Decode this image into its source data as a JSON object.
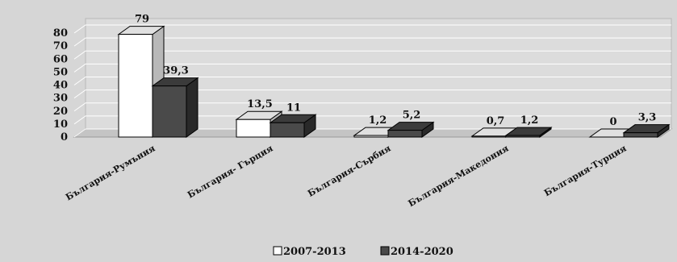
{
  "chart_data": {
    "type": "bar",
    "style": "3d-clustered-column",
    "categories": [
      "България-Румъния",
      "България- Гърция",
      "България-Сърбия",
      "България-Македония",
      "България-Турция"
    ],
    "series": [
      {
        "name": "2007-2013",
        "values": [
          79,
          13.5,
          1.2,
          0.7,
          0
        ],
        "labels": [
          "79",
          "13,5",
          "1,2",
          "0,7",
          "0"
        ],
        "color": "#ffffff"
      },
      {
        "name": "2014-2020",
        "values": [
          39.3,
          11,
          5.2,
          1.2,
          3.3
        ],
        "labels": [
          "39,3",
          "11",
          "5,2",
          "1,2",
          "3,3"
        ],
        "color": "#4a4a4a"
      }
    ],
    "yticks": [
      "0",
      "10",
      "20",
      "30",
      "40",
      "50",
      "60",
      "70",
      "80"
    ],
    "ylim": [
      0,
      80
    ],
    "grid": true,
    "legend_position": "bottom",
    "title": "",
    "xlabel": "",
    "ylabel": ""
  }
}
